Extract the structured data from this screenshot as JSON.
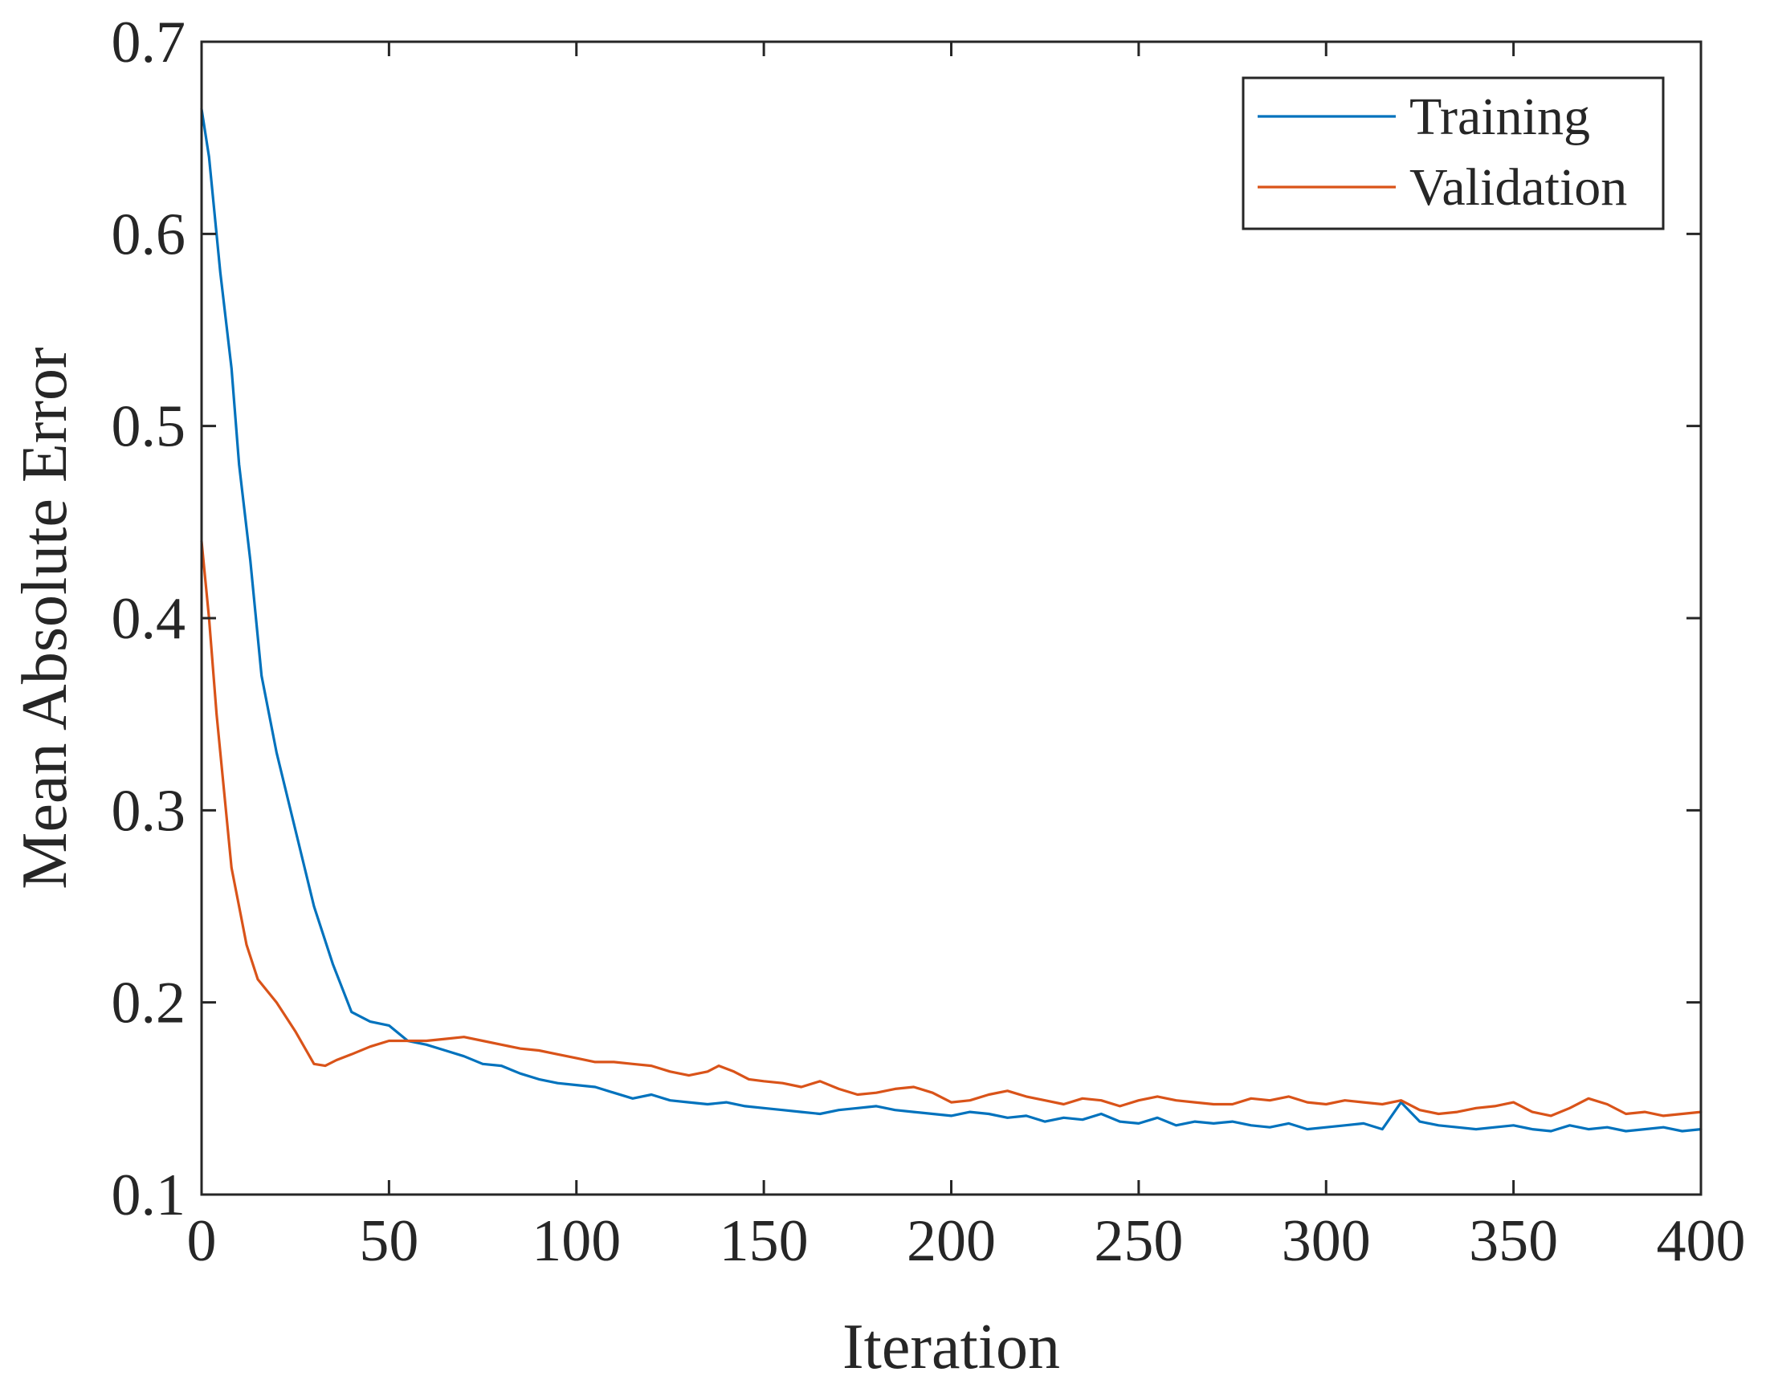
{
  "chart_data": {
    "type": "line",
    "title": "",
    "xlabel": "Iteration",
    "ylabel": "Mean Absolute Error",
    "xlim": [
      0,
      400
    ],
    "ylim": [
      0.1,
      0.7
    ],
    "xticks": [
      0,
      50,
      100,
      150,
      200,
      250,
      300,
      350,
      400
    ],
    "xtick_labels": [
      "0",
      "50",
      "100",
      "150",
      "200",
      "250",
      "300",
      "350",
      "400"
    ],
    "yticks": [
      0.1,
      0.2,
      0.3,
      0.4,
      0.5,
      0.6,
      0.7
    ],
    "ytick_labels": [
      "0.1",
      "0.2",
      "0.3",
      "0.4",
      "0.5",
      "0.6",
      "0.7"
    ],
    "grid": false,
    "legend": {
      "placement": "top-right",
      "entries": [
        "Training",
        "Validation"
      ]
    },
    "series": [
      {
        "name": "Training",
        "color": "#0072BD",
        "x": [
          0,
          2,
          5,
          8,
          10,
          13,
          16,
          20,
          25,
          30,
          35,
          40,
          45,
          50,
          55,
          60,
          65,
          70,
          75,
          80,
          85,
          90,
          95,
          100,
          105,
          110,
          115,
          120,
          125,
          130,
          135,
          140,
          145,
          150,
          155,
          160,
          165,
          170,
          175,
          180,
          185,
          190,
          195,
          200,
          205,
          210,
          215,
          220,
          225,
          230,
          235,
          240,
          245,
          250,
          255,
          260,
          265,
          270,
          275,
          280,
          285,
          290,
          295,
          300,
          305,
          310,
          315,
          320,
          325,
          330,
          335,
          340,
          345,
          350,
          355,
          360,
          365,
          370,
          375,
          380,
          385,
          390,
          395,
          400
        ],
        "values": [
          0.665,
          0.64,
          0.58,
          0.53,
          0.48,
          0.43,
          0.37,
          0.33,
          0.29,
          0.25,
          0.22,
          0.195,
          0.19,
          0.188,
          0.18,
          0.178,
          0.175,
          0.172,
          0.168,
          0.167,
          0.163,
          0.16,
          0.158,
          0.157,
          0.156,
          0.153,
          0.15,
          0.152,
          0.149,
          0.148,
          0.147,
          0.148,
          0.146,
          0.145,
          0.144,
          0.143,
          0.142,
          0.144,
          0.145,
          0.146,
          0.144,
          0.143,
          0.142,
          0.141,
          0.143,
          0.142,
          0.14,
          0.141,
          0.138,
          0.14,
          0.139,
          0.142,
          0.138,
          0.137,
          0.14,
          0.136,
          0.138,
          0.137,
          0.138,
          0.136,
          0.135,
          0.137,
          0.134,
          0.135,
          0.136,
          0.137,
          0.134,
          0.148,
          0.138,
          0.136,
          0.135,
          0.134,
          0.135,
          0.136,
          0.134,
          0.133,
          0.136,
          0.134,
          0.135,
          0.133,
          0.134,
          0.135,
          0.133,
          0.134
        ]
      },
      {
        "name": "Validation",
        "color": "#D95319",
        "x": [
          0,
          2,
          4,
          6,
          8,
          10,
          12,
          15,
          20,
          25,
          30,
          33,
          36,
          40,
          45,
          50,
          55,
          60,
          65,
          70,
          75,
          80,
          85,
          90,
          95,
          100,
          105,
          110,
          115,
          120,
          125,
          130,
          135,
          138,
          142,
          146,
          150,
          155,
          160,
          165,
          170,
          175,
          180,
          185,
          190,
          195,
          200,
          205,
          210,
          215,
          220,
          225,
          230,
          235,
          240,
          245,
          250,
          255,
          260,
          265,
          270,
          275,
          280,
          285,
          290,
          295,
          300,
          305,
          310,
          315,
          320,
          325,
          330,
          335,
          340,
          345,
          350,
          355,
          360,
          365,
          370,
          375,
          380,
          385,
          390,
          395,
          400
        ],
        "values": [
          0.44,
          0.4,
          0.35,
          0.31,
          0.27,
          0.25,
          0.23,
          0.212,
          0.2,
          0.185,
          0.168,
          0.167,
          0.17,
          0.173,
          0.177,
          0.18,
          0.18,
          0.18,
          0.181,
          0.182,
          0.18,
          0.178,
          0.176,
          0.175,
          0.173,
          0.171,
          0.169,
          0.169,
          0.168,
          0.167,
          0.164,
          0.162,
          0.164,
          0.167,
          0.164,
          0.16,
          0.159,
          0.158,
          0.156,
          0.159,
          0.155,
          0.152,
          0.153,
          0.155,
          0.156,
          0.153,
          0.148,
          0.149,
          0.152,
          0.154,
          0.151,
          0.149,
          0.147,
          0.15,
          0.149,
          0.146,
          0.149,
          0.151,
          0.149,
          0.148,
          0.147,
          0.147,
          0.15,
          0.149,
          0.151,
          0.148,
          0.147,
          0.149,
          0.148,
          0.147,
          0.149,
          0.144,
          0.142,
          0.143,
          0.145,
          0.146,
          0.148,
          0.143,
          0.141,
          0.145,
          0.15,
          0.147,
          0.142,
          0.143,
          0.141,
          0.142,
          0.143
        ]
      }
    ]
  }
}
